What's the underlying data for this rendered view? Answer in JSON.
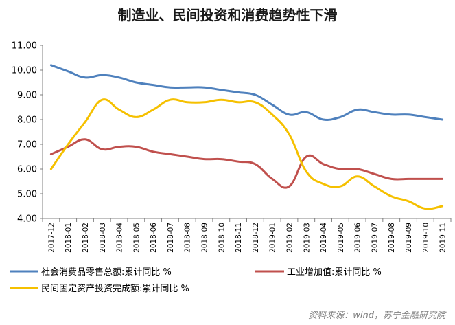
{
  "chart_data": {
    "type": "line",
    "title": "制造业、民间投资和消费趋势性下滑",
    "ylim": [
      4.0,
      11.0
    ],
    "yticks": [
      "11.00",
      "10.00",
      "9.00",
      "8.00",
      "7.00",
      "6.00",
      "5.00",
      "4.00"
    ],
    "grid": false,
    "legend_position": "bottom",
    "categories": [
      "2017-12",
      "2018-01",
      "2018-02",
      "2018-03",
      "2018-04",
      "2018-05",
      "2018-06",
      "2018-07",
      "2018-08",
      "2018-09",
      "2018-10",
      "2018-11",
      "2018-12",
      "2019-01",
      "2019-02",
      "2019-03",
      "2019-04",
      "2019-05",
      "2019-06",
      "2019-07",
      "2019-08",
      "2019-09",
      "2019-10",
      "2019-11"
    ],
    "series": [
      {
        "name": "社会消费品零售总额:累计同比 %",
        "color": "#4F81BD",
        "values": [
          10.2,
          9.95,
          9.7,
          9.8,
          9.7,
          9.5,
          9.4,
          9.3,
          9.3,
          9.3,
          9.2,
          9.1,
          9.0,
          8.6,
          8.2,
          8.3,
          8.0,
          8.1,
          8.4,
          8.3,
          8.2,
          8.2,
          8.1,
          8.0
        ]
      },
      {
        "name": "工业增加值:累计同比 %",
        "color": "#C0504D",
        "values": [
          6.6,
          6.9,
          7.2,
          6.8,
          6.9,
          6.9,
          6.7,
          6.6,
          6.5,
          6.4,
          6.4,
          6.3,
          6.2,
          5.6,
          5.3,
          6.5,
          6.2,
          6.0,
          6.0,
          5.8,
          5.6,
          5.6,
          5.6,
          5.6
        ]
      },
      {
        "name": "民间固定资产投资完成额:累计同比 %",
        "color": "#F5C000",
        "values": [
          6.0,
          7.0,
          7.9,
          8.8,
          8.4,
          8.1,
          8.4,
          8.8,
          8.7,
          8.7,
          8.8,
          8.7,
          8.7,
          8.2,
          7.4,
          5.9,
          5.4,
          5.3,
          5.7,
          5.3,
          4.9,
          4.7,
          4.4,
          4.5
        ]
      }
    ]
  },
  "source": "资料来源：wind，苏宁金融研究院"
}
